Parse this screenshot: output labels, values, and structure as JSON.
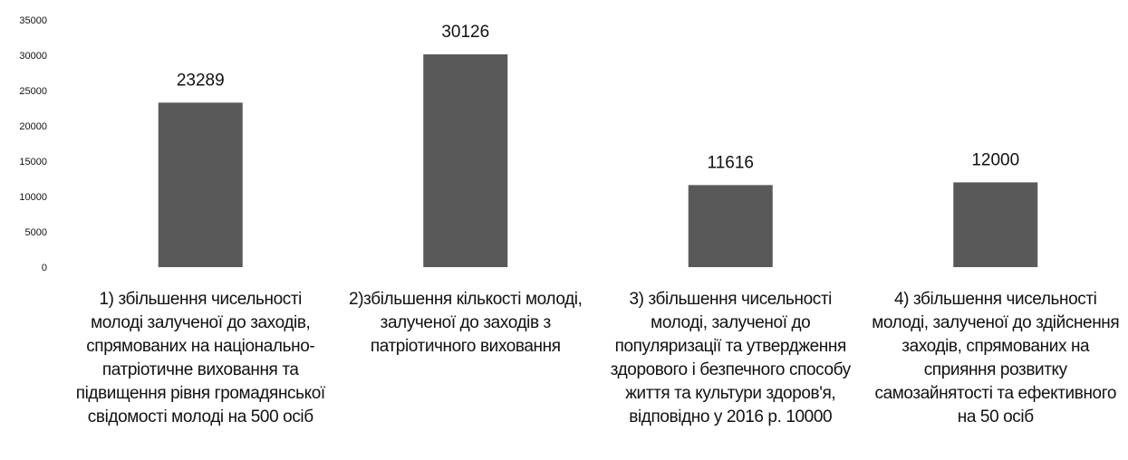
{
  "chart_data": {
    "type": "bar",
    "categories": [
      "1) збільшення чисельності молоді  залученої до заходів, спрямованих на національно-патріотичне виховання та підвищення рівня громадянської свідомості молоді на 500 осіб",
      "2)збільшення кількості молоді, залученої до заходів з патріотичного виховання",
      "3) збільшення чисельності молоді, залученої до популяризації та утвердження здорового і безпечного способу життя та культури здоров'я, відповідно у 2016 р. 10000",
      "4) збільшення чисельності молоді, залученої до здійснення заходів, спрямованих на сприяння розвитку самозайнятості та ефективного на 50 осіб"
    ],
    "values": [
      23289,
      30126,
      11616,
      12000
    ],
    "data_labels": [
      "23289",
      "30126",
      "11616",
      "12000"
    ],
    "yticks": [
      "35000",
      "30000",
      "25000",
      "20000",
      "15000",
      "10000",
      "5000",
      "0"
    ],
    "ylim": [
      0,
      35000
    ],
    "grid": false,
    "legend": "none",
    "bar_color": "#595959"
  }
}
